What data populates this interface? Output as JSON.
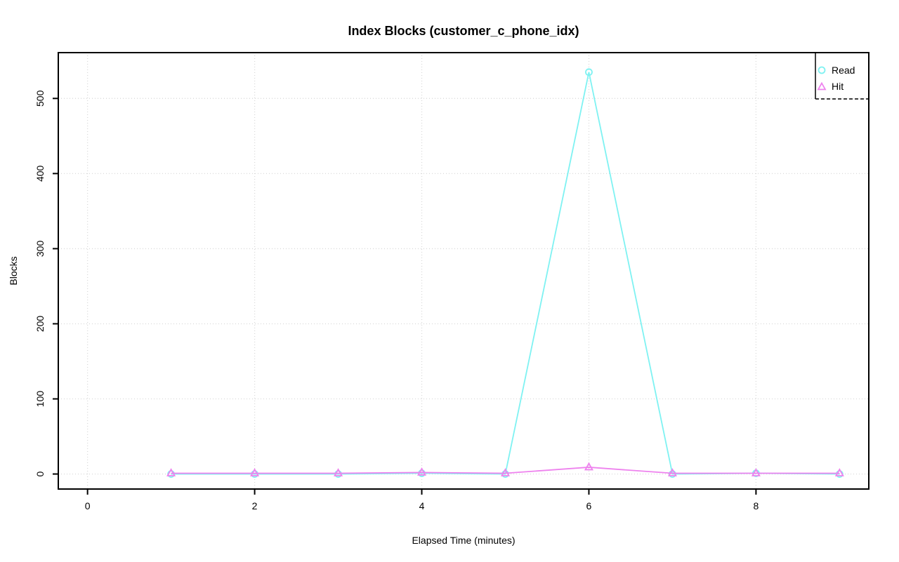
{
  "chart_data": {
    "type": "line",
    "title": "Index Blocks (customer_c_phone_idx)",
    "xlabel": "Elapsed Time (minutes)",
    "ylabel": "Blocks",
    "x": [
      1,
      2,
      3,
      4,
      5,
      6,
      7,
      8,
      9
    ],
    "series": [
      {
        "name": "Read",
        "marker": "circle",
        "color": "#7FF2F2",
        "values": [
          0,
          0,
          0,
          1,
          0,
          535,
          0,
          1,
          0
        ]
      },
      {
        "name": "Hit",
        "marker": "triangle",
        "color": "#EE82EE",
        "values": [
          1,
          1,
          1,
          2,
          1,
          9,
          1,
          1,
          1
        ]
      }
    ],
    "x_ticks": [
      0,
      2,
      4,
      6,
      8
    ],
    "y_ticks": [
      0,
      100,
      200,
      300,
      400,
      500
    ],
    "xlim": [
      -0.35,
      9.35
    ],
    "ylim": [
      -20,
      561
    ],
    "grid": true,
    "grid_color": "#D9D9D9",
    "axis_color": "#000000",
    "background": "#FFFFFF",
    "legend_position": "top-right"
  }
}
